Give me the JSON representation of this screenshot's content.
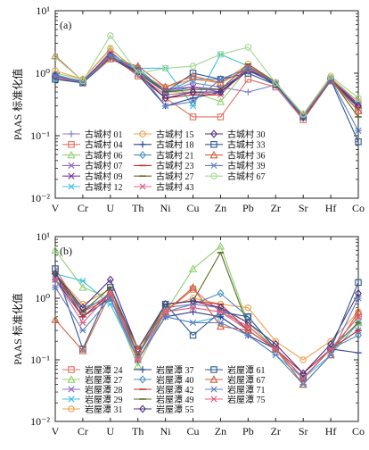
{
  "chart_data": [
    {
      "type": "line",
      "panel_label": "(a)",
      "ylabel": "PAAS 标准化值",
      "yscale": "log",
      "ylim": [
        0.01,
        10
      ],
      "ytick_labels": [
        "10⁻²",
        "10⁻¹",
        "10⁰",
        "10¹"
      ],
      "categories": [
        "V",
        "Cr",
        "U",
        "Th",
        "Ni",
        "Cu",
        "Zn",
        "Pb",
        "Zr",
        "Sr",
        "Hf",
        "Co"
      ],
      "series": [
        {
          "name": "古城村 01",
          "color": "#8080d0",
          "marker": "plus",
          "values": [
            0.85,
            0.7,
            1.9,
            1.0,
            0.5,
            0.7,
            0.6,
            0.5,
            0.65,
            0.2,
            0.8,
            0.3
          ]
        },
        {
          "name": "古城村 04",
          "color": "#e07060",
          "marker": "square",
          "values": [
            0.9,
            0.75,
            2.0,
            0.9,
            0.4,
            0.2,
            0.2,
            0.8,
            0.6,
            0.18,
            0.75,
            0.25
          ]
        },
        {
          "name": "古城村 06",
          "color": "#90d070",
          "marker": "triangle",
          "values": [
            1.0,
            0.8,
            2.4,
            1.1,
            0.5,
            0.5,
            0.35,
            1.2,
            0.7,
            0.2,
            0.8,
            0.3
          ]
        },
        {
          "name": "古城村 07",
          "color": "#8a6fc0",
          "marker": "x",
          "values": [
            0.9,
            0.7,
            2.2,
            1.0,
            0.5,
            0.6,
            0.5,
            1.1,
            0.7,
            0.2,
            0.8,
            0.3
          ]
        },
        {
          "name": "古城村 09",
          "color": "#7a3e9d",
          "marker": "x",
          "values": [
            0.9,
            0.75,
            2.1,
            1.05,
            0.55,
            0.6,
            0.55,
            1.15,
            0.7,
            0.21,
            0.82,
            0.32
          ]
        },
        {
          "name": "古城村 12",
          "color": "#40c0e0",
          "marker": "star",
          "values": [
            0.8,
            0.7,
            2.0,
            1.2,
            1.2,
            0.3,
            2.0,
            1.3,
            0.7,
            0.2,
            0.8,
            0.35
          ]
        },
        {
          "name": "古城村 15",
          "color": "#f0a050",
          "marker": "circle",
          "values": [
            1.1,
            0.8,
            2.5,
            1.0,
            0.6,
            0.8,
            0.7,
            1.4,
            0.7,
            0.2,
            0.85,
            0.35
          ]
        },
        {
          "name": "古城村 18",
          "color": "#304090",
          "marker": "plus",
          "values": [
            0.9,
            0.72,
            1.9,
            0.95,
            0.3,
            0.4,
            0.5,
            1.2,
            0.65,
            0.19,
            0.78,
            0.28
          ]
        },
        {
          "name": "古城村 21",
          "color": "#5090c0",
          "marker": "diamond",
          "values": [
            0.95,
            0.72,
            1.8,
            1.2,
            0.5,
            0.8,
            0.8,
            1.2,
            0.7,
            0.2,
            0.8,
            0.3
          ]
        },
        {
          "name": "古城村 23",
          "color": "#c03030",
          "marker": "line",
          "values": [
            0.85,
            0.7,
            1.8,
            0.95,
            0.4,
            0.45,
            0.45,
            1.3,
            0.7,
            0.19,
            0.8,
            0.3
          ]
        },
        {
          "name": "古城村 27",
          "color": "#5a6a20",
          "marker": "line",
          "values": [
            0.9,
            0.72,
            1.85,
            1.0,
            0.5,
            0.55,
            0.55,
            1.4,
            0.72,
            0.2,
            0.82,
            0.2
          ]
        },
        {
          "name": "古城村 43",
          "color": "#e06080",
          "marker": "star",
          "values": [
            0.85,
            0.7,
            2.0,
            0.95,
            0.45,
            0.5,
            0.45,
            1.25,
            0.7,
            0.2,
            0.8,
            0.3
          ]
        },
        {
          "name": "古城村 30",
          "color": "#503080",
          "marker": "diamond",
          "values": [
            0.9,
            0.72,
            1.9,
            1.0,
            0.4,
            0.5,
            0.5,
            1.1,
            0.7,
            0.2,
            0.8,
            0.3
          ]
        },
        {
          "name": "古城村 33",
          "color": "#305a90",
          "marker": "square",
          "values": [
            0.8,
            0.7,
            1.7,
            1.1,
            0.5,
            1.0,
            0.8,
            1.0,
            0.65,
            0.2,
            0.78,
            0.08
          ]
        },
        {
          "name": "古城村 36",
          "color": "#d06040",
          "marker": "triangle",
          "values": [
            1.9,
            0.75,
            1.7,
            1.3,
            0.6,
            0.9,
            0.7,
            1.2,
            0.7,
            0.22,
            0.8,
            0.25
          ]
        },
        {
          "name": "古城村 39",
          "color": "#6080c0",
          "marker": "star",
          "values": [
            0.9,
            0.72,
            1.9,
            1.1,
            0.3,
            0.35,
            0.8,
            1.2,
            0.7,
            0.2,
            0.8,
            0.12
          ]
        },
        {
          "name": "古城村 67",
          "color": "#a0d890",
          "marker": "circle",
          "values": [
            1.8,
            0.75,
            4.0,
            1.0,
            1.2,
            1.3,
            2.0,
            2.6,
            0.7,
            0.22,
            0.9,
            0.4
          ]
        }
      ]
    },
    {
      "type": "line",
      "panel_label": "(b)",
      "ylabel": "PAAS 标准化值",
      "yscale": "log",
      "ylim": [
        0.01,
        10
      ],
      "ytick_labels": [
        "10⁻²",
        "10⁻¹",
        "10⁰",
        "10¹"
      ],
      "categories": [
        "V",
        "Cr",
        "U",
        "Th",
        "Ni",
        "Cu",
        "Zn",
        "Pb",
        "Zr",
        "Sr",
        "Hf",
        "Co"
      ],
      "series": [
        {
          "name": "岩屋潭 24",
          "color": "#e07060",
          "marker": "square",
          "values": [
            3.0,
            0.6,
            1.0,
            0.1,
            0.6,
            1.4,
            0.6,
            0.3,
            0.15,
            0.05,
            0.15,
            0.5
          ]
        },
        {
          "name": "岩屋潭 27",
          "color": "#90d070",
          "marker": "triangle",
          "values": [
            6.0,
            1.5,
            1.0,
            0.08,
            0.6,
            3.0,
            7.0,
            0.4,
            0.15,
            0.04,
            0.12,
            0.4
          ]
        },
        {
          "name": "岩屋潭 28",
          "color": "#8a6fc0",
          "marker": "x",
          "values": [
            2.0,
            0.6,
            1.2,
            0.12,
            0.7,
            0.8,
            0.7,
            0.3,
            0.15,
            0.05,
            0.15,
            0.3
          ]
        },
        {
          "name": "岩屋潭 29",
          "color": "#40c0e0",
          "marker": "star",
          "values": [
            2.5,
            1.9,
            0.8,
            0.1,
            0.5,
            0.4,
            0.5,
            0.25,
            0.12,
            0.05,
            0.12,
            0.4
          ]
        },
        {
          "name": "岩屋潭 31",
          "color": "#f0a050",
          "marker": "circle",
          "values": [
            2.5,
            0.8,
            1.4,
            0.15,
            0.7,
            1.0,
            0.8,
            0.7,
            0.2,
            0.1,
            0.2,
            0.6
          ]
        },
        {
          "name": "岩屋潭 37",
          "color": "#304090",
          "marker": "plus",
          "values": [
            2.0,
            0.5,
            1.0,
            0.1,
            0.5,
            0.6,
            0.5,
            0.25,
            0.15,
            0.05,
            0.15,
            0.13
          ]
        },
        {
          "name": "岩屋潭 40",
          "color": "#5090c0",
          "marker": "diamond",
          "values": [
            2.0,
            0.7,
            1.0,
            0.12,
            0.6,
            0.8,
            1.2,
            0.5,
            0.15,
            0.05,
            0.15,
            0.25
          ]
        },
        {
          "name": "岩屋潭 42",
          "color": "#c03030",
          "marker": "line",
          "values": [
            2.5,
            0.5,
            1.2,
            0.15,
            0.8,
            0.9,
            0.8,
            0.3,
            0.15,
            0.06,
            0.15,
            0.3
          ]
        },
        {
          "name": "岩屋潭 49",
          "color": "#5a6a20",
          "marker": "line",
          "values": [
            2.5,
            0.6,
            1.5,
            0.12,
            0.8,
            0.9,
            5.5,
            0.35,
            0.15,
            0.05,
            0.15,
            0.4
          ]
        },
        {
          "name": "岩屋潭 55",
          "color": "#503080",
          "marker": "diamond",
          "values": [
            2.5,
            0.7,
            2.0,
            0.15,
            0.8,
            0.9,
            0.7,
            0.4,
            0.18,
            0.06,
            0.18,
            1.2
          ]
        },
        {
          "name": "岩屋潭 61",
          "color": "#305a90",
          "marker": "square",
          "values": [
            3.0,
            0.15,
            1.5,
            0.15,
            0.8,
            0.25,
            0.6,
            0.5,
            0.15,
            0.05,
            0.15,
            1.8
          ]
        },
        {
          "name": "岩屋潭 67",
          "color": "#d06040",
          "marker": "triangle",
          "values": [
            0.45,
            0.14,
            1.2,
            0.15,
            0.6,
            1.5,
            0.35,
            0.3,
            0.15,
            0.04,
            0.12,
            0.6
          ]
        },
        {
          "name": "岩屋潭 71",
          "color": "#6080c0",
          "marker": "star",
          "values": [
            1.5,
            0.3,
            1.0,
            0.1,
            0.5,
            0.4,
            0.4,
            0.25,
            0.12,
            0.04,
            0.12,
            1.0
          ]
        },
        {
          "name": "岩屋潭 75",
          "color": "#e06080",
          "marker": "star",
          "values": [
            2.0,
            0.4,
            1.2,
            0.1,
            0.6,
            0.7,
            0.6,
            0.35,
            0.15,
            0.05,
            0.15,
            0.5
          ]
        }
      ]
    }
  ]
}
